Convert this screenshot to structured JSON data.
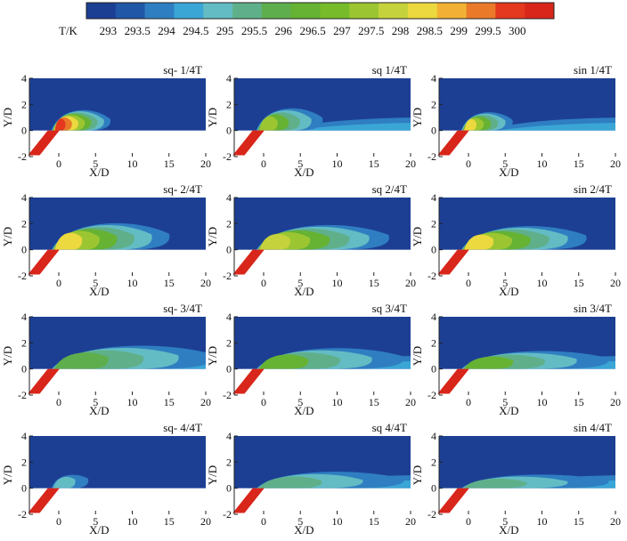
{
  "chart_data": {
    "type": "heatmap",
    "title": "",
    "colorbar": {
      "label": "T/K",
      "levels": [
        293,
        293.5,
        294,
        294.5,
        295,
        295.5,
        296,
        296.5,
        297,
        297.5,
        298,
        298.5,
        299,
        299.5,
        300
      ],
      "tick_labels": [
        "293",
        "293.5",
        "294",
        "294.5",
        "295",
        "295.5",
        "296",
        "296.5",
        "297",
        "297.5",
        "298",
        "298.5",
        "299",
        "299.5",
        "300"
      ],
      "colors": [
        "#1c3f94",
        "#2057a6",
        "#2f7ec1",
        "#3aa6d6",
        "#63bcc4",
        "#5fb08a",
        "#5fae4d",
        "#66b233",
        "#77bb2a",
        "#9cc631",
        "#c5d23c",
        "#ecd83f",
        "#f2b134",
        "#ea7a2a",
        "#e4381f",
        "#d8261a"
      ]
    },
    "xlabel": "X/D",
    "ylabel": "Y/D",
    "xlim": [
      -4,
      20
    ],
    "ylim": [
      -2,
      4
    ],
    "xticks": [
      0,
      5,
      10,
      15,
      20
    ],
    "xtick_labels": [
      "0",
      "5",
      "10",
      "15",
      "20"
    ],
    "yticks": [
      -2,
      0,
      2,
      4
    ],
    "ytick_labels": [
      "-2",
      "0",
      "2",
      "4"
    ],
    "wall_y": 0,
    "panels": [
      {
        "title": "sq- 1/4T",
        "core_temp": 299.5,
        "length": 8,
        "spread": 1.5,
        "lift": 0.6,
        "band": 0
      },
      {
        "title": "sq 1/4T",
        "core_temp": 297,
        "length": 9,
        "spread": 1.6,
        "lift": 0.7,
        "band": 5
      },
      {
        "title": "sin 1/4T",
        "core_temp": 298,
        "length": 7,
        "spread": 1.3,
        "lift": 0.6,
        "band": 20
      },
      {
        "title": "sq- 2/4T",
        "core_temp": 298,
        "length": 16,
        "spread": 1.8,
        "lift": 1.0,
        "band": 0
      },
      {
        "title": "sq 2/4T",
        "core_temp": 297.5,
        "length": 18,
        "spread": 1.7,
        "lift": 0.9,
        "band": 0
      },
      {
        "title": "sin 2/4T",
        "core_temp": 298,
        "length": 17,
        "spread": 1.6,
        "lift": 0.9,
        "band": 0
      },
      {
        "title": "sq- 3/4T",
        "core_temp": 295.5,
        "length": 22,
        "spread": 1.5,
        "lift": 1.0,
        "band": 20
      },
      {
        "title": "sq 3/4T",
        "core_temp": 296,
        "length": 20,
        "spread": 1.4,
        "lift": 0.8,
        "band": 20
      },
      {
        "title": "sin 3/4T",
        "core_temp": 296,
        "length": 20,
        "spread": 1.2,
        "lift": 0.7,
        "band": 20
      },
      {
        "title": "sq- 4/4T",
        "core_temp": 294.5,
        "length": 5,
        "spread": 0.7,
        "lift": 0.8,
        "band": 0
      },
      {
        "title": "sq 4/4T",
        "core_temp": 295,
        "length": 20,
        "spread": 1.2,
        "lift": 0.5,
        "band": 20
      },
      {
        "title": "sin 4/4T",
        "core_temp": 295,
        "length": 20,
        "spread": 1.0,
        "lift": 0.4,
        "band": 20
      }
    ]
  }
}
